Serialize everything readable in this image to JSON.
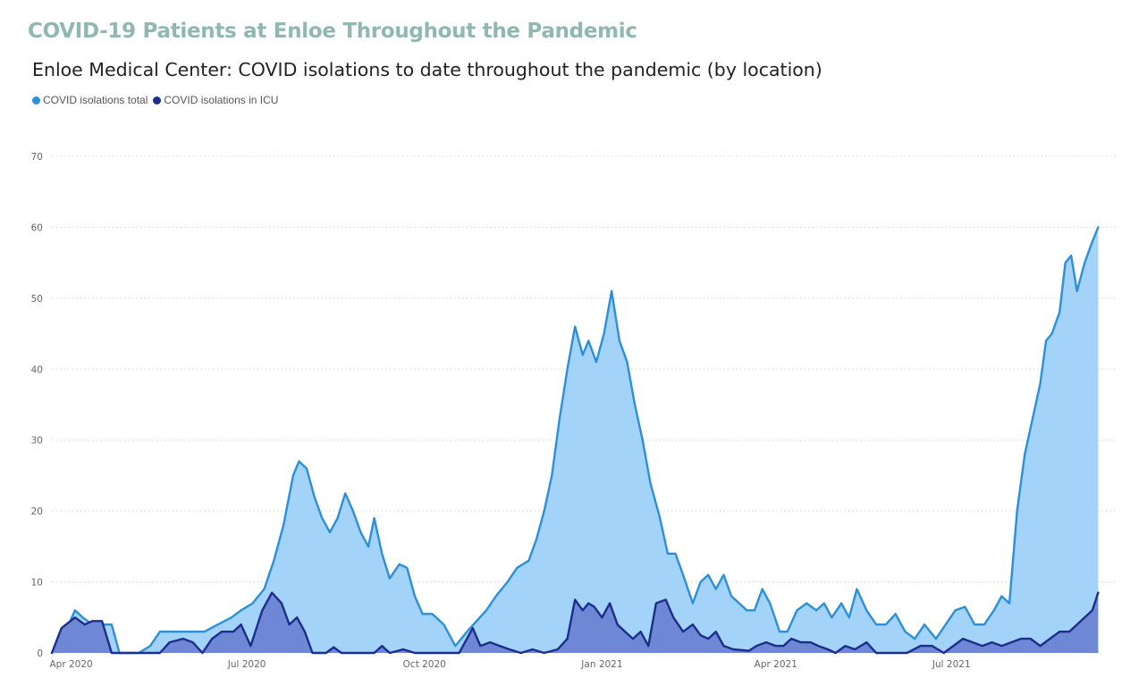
{
  "page_heading": "COVID-19 Patients at Enloe Throughout the Pandemic",
  "chart_data": {
    "type": "area",
    "title": "Enloe Medical Center: COVID isolations to date throughout the pandemic (by location)",
    "xlabel": "",
    "ylabel": "",
    "ylim": [
      0,
      70
    ],
    "yticks": [
      0,
      10,
      20,
      30,
      40,
      50,
      60,
      70
    ],
    "xlim": [
      "2020-03-22",
      "2021-09-25"
    ],
    "xticks": [
      {
        "date": "2020-04-01",
        "label": "Apr 2020"
      },
      {
        "date": "2020-07-01",
        "label": "Jul 2020"
      },
      {
        "date": "2020-10-01",
        "label": "Oct 2020"
      },
      {
        "date": "2021-01-01",
        "label": "Jan 2021"
      },
      {
        "date": "2021-04-01",
        "label": "Apr 2021"
      },
      {
        "date": "2021-07-01",
        "label": "Jul 2021"
      }
    ],
    "grid": "horizontal-dotted",
    "legend_position": "top-left",
    "series": [
      {
        "name": "COVID isolations total",
        "line_color": "#2d8fd8",
        "fill_color": "#a3d3f8",
        "points": [
          [
            "2020-03-22",
            0
          ],
          [
            "2020-03-29",
            3
          ],
          [
            "2020-04-03",
            6
          ],
          [
            "2020-04-07",
            5
          ],
          [
            "2020-04-12",
            4
          ],
          [
            "2020-04-19",
            4
          ],
          [
            "2020-04-22",
            4
          ],
          [
            "2020-04-26",
            0
          ],
          [
            "2020-05-06",
            0
          ],
          [
            "2020-05-12",
            1
          ],
          [
            "2020-05-17",
            3
          ],
          [
            "2020-05-22",
            3
          ],
          [
            "2020-05-29",
            3
          ],
          [
            "2020-06-03",
            3
          ],
          [
            "2020-06-09",
            3
          ],
          [
            "2020-06-16",
            4
          ],
          [
            "2020-06-23",
            5
          ],
          [
            "2020-06-28",
            6
          ],
          [
            "2020-07-04",
            7
          ],
          [
            "2020-07-10",
            9
          ],
          [
            "2020-07-15",
            13
          ],
          [
            "2020-07-20",
            18
          ],
          [
            "2020-07-25",
            25
          ],
          [
            "2020-07-28",
            27
          ],
          [
            "2020-08-01",
            26
          ],
          [
            "2020-08-05",
            22
          ],
          [
            "2020-08-09",
            19
          ],
          [
            "2020-08-13",
            17
          ],
          [
            "2020-08-17",
            19
          ],
          [
            "2020-08-21",
            22.5
          ],
          [
            "2020-08-25",
            20
          ],
          [
            "2020-08-29",
            17
          ],
          [
            "2020-09-02",
            15
          ],
          [
            "2020-09-05",
            19
          ],
          [
            "2020-09-09",
            14
          ],
          [
            "2020-09-13",
            10.5
          ],
          [
            "2020-09-18",
            12.5
          ],
          [
            "2020-09-22",
            12
          ],
          [
            "2020-09-26",
            8
          ],
          [
            "2020-09-30",
            5.5
          ],
          [
            "2020-10-05",
            5.5
          ],
          [
            "2020-10-11",
            4
          ],
          [
            "2020-10-17",
            1
          ],
          [
            "2020-10-23",
            3
          ],
          [
            "2020-10-28",
            4.5
          ],
          [
            "2020-11-02",
            6
          ],
          [
            "2020-11-07",
            8
          ],
          [
            "2020-11-13",
            10
          ],
          [
            "2020-11-18",
            12
          ],
          [
            "2020-11-24",
            13
          ],
          [
            "2020-11-28",
            16
          ],
          [
            "2020-12-02",
            20
          ],
          [
            "2020-12-06",
            25
          ],
          [
            "2020-12-10",
            33
          ],
          [
            "2020-12-14",
            40
          ],
          [
            "2020-12-18",
            46
          ],
          [
            "2020-12-22",
            42
          ],
          [
            "2020-12-25",
            44
          ],
          [
            "2020-12-29",
            41
          ],
          [
            "2021-01-02",
            45
          ],
          [
            "2021-01-06",
            51
          ],
          [
            "2021-01-10",
            44
          ],
          [
            "2021-01-14",
            41
          ],
          [
            "2021-01-18",
            35
          ],
          [
            "2021-01-22",
            30
          ],
          [
            "2021-01-26",
            24
          ],
          [
            "2021-01-31",
            19
          ],
          [
            "2021-02-04",
            14
          ],
          [
            "2021-02-08",
            14
          ],
          [
            "2021-02-12",
            11
          ],
          [
            "2021-02-17",
            7
          ],
          [
            "2021-02-21",
            10
          ],
          [
            "2021-02-25",
            11
          ],
          [
            "2021-03-01",
            9
          ],
          [
            "2021-03-05",
            11
          ],
          [
            "2021-03-09",
            8
          ],
          [
            "2021-03-13",
            7
          ],
          [
            "2021-03-17",
            6
          ],
          [
            "2021-03-21",
            6
          ],
          [
            "2021-03-25",
            9
          ],
          [
            "2021-03-29",
            7
          ],
          [
            "2021-04-03",
            3
          ],
          [
            "2021-04-07",
            3
          ],
          [
            "2021-04-12",
            6
          ],
          [
            "2021-04-17",
            7
          ],
          [
            "2021-04-22",
            6
          ],
          [
            "2021-04-26",
            7
          ],
          [
            "2021-04-30",
            5
          ],
          [
            "2021-05-05",
            7
          ],
          [
            "2021-05-09",
            5
          ],
          [
            "2021-05-13",
            9
          ],
          [
            "2021-05-18",
            6
          ],
          [
            "2021-05-23",
            4
          ],
          [
            "2021-05-28",
            4
          ],
          [
            "2021-06-02",
            5.5
          ],
          [
            "2021-06-07",
            3
          ],
          [
            "2021-06-12",
            2
          ],
          [
            "2021-06-17",
            4
          ],
          [
            "2021-06-23",
            2
          ],
          [
            "2021-06-28",
            4
          ],
          [
            "2021-07-03",
            6
          ],
          [
            "2021-07-08",
            6.5
          ],
          [
            "2021-07-13",
            4
          ],
          [
            "2021-07-18",
            4
          ],
          [
            "2021-07-23",
            6
          ],
          [
            "2021-07-27",
            8
          ],
          [
            "2021-07-31",
            7
          ],
          [
            "2021-08-04",
            20
          ],
          [
            "2021-08-08",
            28
          ],
          [
            "2021-08-12",
            33
          ],
          [
            "2021-08-16",
            38
          ],
          [
            "2021-08-19",
            44
          ],
          [
            "2021-08-22",
            45
          ],
          [
            "2021-08-26",
            48
          ],
          [
            "2021-08-29",
            55
          ],
          [
            "2021-09-01",
            56
          ],
          [
            "2021-09-04",
            51
          ],
          [
            "2021-09-08",
            55
          ],
          [
            "2021-09-12",
            58
          ],
          [
            "2021-09-15",
            60
          ]
        ]
      },
      {
        "name": "COVID isolations in ICU",
        "line_color": "#1d2d8c",
        "fill_color": "#6e88d6",
        "points": [
          [
            "2020-03-22",
            0
          ],
          [
            "2020-03-27",
            3.5
          ],
          [
            "2020-04-03",
            5
          ],
          [
            "2020-04-08",
            4
          ],
          [
            "2020-04-12",
            4.5
          ],
          [
            "2020-04-17",
            4.5
          ],
          [
            "2020-04-22",
            0
          ],
          [
            "2020-05-17",
            0
          ],
          [
            "2020-05-22",
            1.5
          ],
          [
            "2020-05-29",
            2
          ],
          [
            "2020-06-03",
            1.5
          ],
          [
            "2020-06-08",
            0
          ],
          [
            "2020-06-13",
            2
          ],
          [
            "2020-06-18",
            3
          ],
          [
            "2020-06-24",
            3
          ],
          [
            "2020-06-28",
            4
          ],
          [
            "2020-07-03",
            1
          ],
          [
            "2020-07-09",
            6
          ],
          [
            "2020-07-14",
            8.5
          ],
          [
            "2020-07-19",
            7
          ],
          [
            "2020-07-23",
            4
          ],
          [
            "2020-07-27",
            5
          ],
          [
            "2020-07-31",
            3
          ],
          [
            "2020-08-04",
            0
          ],
          [
            "2020-08-11",
            0
          ],
          [
            "2020-08-15",
            0.8
          ],
          [
            "2020-08-19",
            0
          ],
          [
            "2020-09-05",
            0
          ],
          [
            "2020-09-09",
            1
          ],
          [
            "2020-09-13",
            0
          ],
          [
            "2020-09-20",
            0.5
          ],
          [
            "2020-09-26",
            0
          ],
          [
            "2020-10-19",
            0
          ],
          [
            "2020-10-26",
            3.5
          ],
          [
            "2020-10-30",
            1
          ],
          [
            "2020-11-04",
            1.5
          ],
          [
            "2020-11-09",
            1
          ],
          [
            "2020-11-14",
            0.5
          ],
          [
            "2020-11-20",
            0
          ],
          [
            "2020-11-26",
            0.5
          ],
          [
            "2020-12-02",
            0
          ],
          [
            "2020-12-09",
            0.5
          ],
          [
            "2020-12-14",
            2
          ],
          [
            "2020-12-18",
            7.5
          ],
          [
            "2020-12-22",
            6
          ],
          [
            "2020-12-25",
            7
          ],
          [
            "2020-12-28",
            6.5
          ],
          [
            "2021-01-01",
            5
          ],
          [
            "2021-01-05",
            7
          ],
          [
            "2021-01-09",
            4
          ],
          [
            "2021-01-13",
            3
          ],
          [
            "2021-01-17",
            2
          ],
          [
            "2021-01-21",
            3
          ],
          [
            "2021-01-25",
            1
          ],
          [
            "2021-01-29",
            7
          ],
          [
            "2021-02-03",
            7.5
          ],
          [
            "2021-02-07",
            5
          ],
          [
            "2021-02-12",
            3
          ],
          [
            "2021-02-17",
            4
          ],
          [
            "2021-02-21",
            2.5
          ],
          [
            "2021-02-25",
            2
          ],
          [
            "2021-03-01",
            3
          ],
          [
            "2021-03-05",
            1
          ],
          [
            "2021-03-10",
            0.5
          ],
          [
            "2021-03-18",
            0.3
          ],
          [
            "2021-03-22",
            1
          ],
          [
            "2021-03-27",
            1.5
          ],
          [
            "2021-04-01",
            1
          ],
          [
            "2021-04-05",
            1
          ],
          [
            "2021-04-09",
            2
          ],
          [
            "2021-04-14",
            1.5
          ],
          [
            "2021-04-19",
            1.5
          ],
          [
            "2021-04-23",
            1
          ],
          [
            "2021-04-28",
            0.5
          ],
          [
            "2021-05-02",
            0
          ],
          [
            "2021-05-07",
            1
          ],
          [
            "2021-05-12",
            0.5
          ],
          [
            "2021-05-18",
            1.5
          ],
          [
            "2021-05-23",
            0
          ],
          [
            "2021-06-08",
            0
          ],
          [
            "2021-06-15",
            1
          ],
          [
            "2021-06-21",
            1
          ],
          [
            "2021-06-27",
            0
          ],
          [
            "2021-07-02",
            1
          ],
          [
            "2021-07-07",
            2
          ],
          [
            "2021-07-12",
            1.5
          ],
          [
            "2021-07-17",
            1
          ],
          [
            "2021-07-22",
            1.5
          ],
          [
            "2021-07-27",
            1
          ],
          [
            "2021-08-01",
            1.5
          ],
          [
            "2021-08-06",
            2
          ],
          [
            "2021-08-11",
            2
          ],
          [
            "2021-08-16",
            1
          ],
          [
            "2021-08-21",
            2
          ],
          [
            "2021-08-26",
            3
          ],
          [
            "2021-08-31",
            3
          ],
          [
            "2021-09-04",
            4
          ],
          [
            "2021-09-08",
            5
          ],
          [
            "2021-09-12",
            6
          ],
          [
            "2021-09-15",
            8.5
          ]
        ]
      }
    ]
  }
}
